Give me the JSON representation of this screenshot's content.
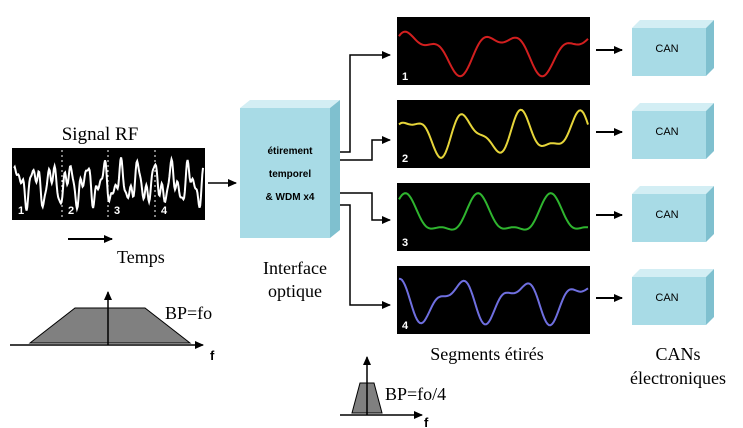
{
  "input": {
    "title": "Signal RF",
    "segment_labels": [
      "1",
      "2",
      "3",
      "4"
    ],
    "time_label": "Temps",
    "bandwidth_label": "BP=fo",
    "freq_axis": "f"
  },
  "interface": {
    "box_lines": [
      "étirement",
      "temporel",
      "& WDM x4"
    ],
    "caption_lines": [
      "Interface",
      "optique"
    ]
  },
  "segments": {
    "labels": [
      "1",
      "2",
      "3",
      "4"
    ],
    "colors": [
      "#d21f1f",
      "#e6d53a",
      "#2fb52f",
      "#6f6fe0"
    ],
    "caption": "Segments étirés",
    "bandwidth_label": "BP=fo/4",
    "freq_axis": "f"
  },
  "adcs": {
    "labels": [
      "CAN",
      "CAN",
      "CAN",
      "CAN"
    ],
    "caption_lines": [
      "CANs",
      "électroniques"
    ]
  },
  "colors": {
    "box_front": "#a8dbe6",
    "box_top": "#d3eef4",
    "box_side": "#7fc0cf",
    "panel": "#000000",
    "trapezoid": "#808080"
  }
}
